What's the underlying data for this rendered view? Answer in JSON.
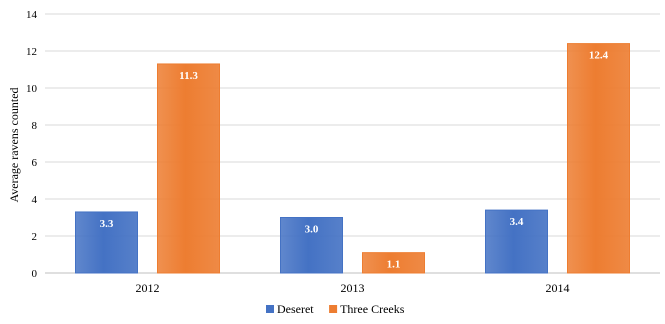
{
  "chart_data": {
    "type": "bar",
    "title": "",
    "xlabel": "",
    "ylabel": "Average ravens counted",
    "categories": [
      "2012",
      "2013",
      "2014"
    ],
    "series": [
      {
        "name": "Deseret",
        "values": [
          3.3,
          3.0,
          3.4
        ],
        "color": "#4472C4"
      },
      {
        "name": "Three Creeks",
        "values": [
          11.3,
          1.1,
          12.4
        ],
        "color": "#ED7D31"
      }
    ],
    "data_labels": [
      [
        "3.3",
        "3.0",
        "3.4"
      ],
      [
        "11.3",
        "1.1",
        "12.4"
      ]
    ],
    "ylim": [
      0,
      14
    ],
    "yticks": [
      0,
      2,
      4,
      6,
      8,
      10,
      12,
      14
    ],
    "grid": true,
    "legend": {
      "position": "bottom",
      "entries": [
        "Deseret",
        "Three Creeks"
      ]
    }
  }
}
